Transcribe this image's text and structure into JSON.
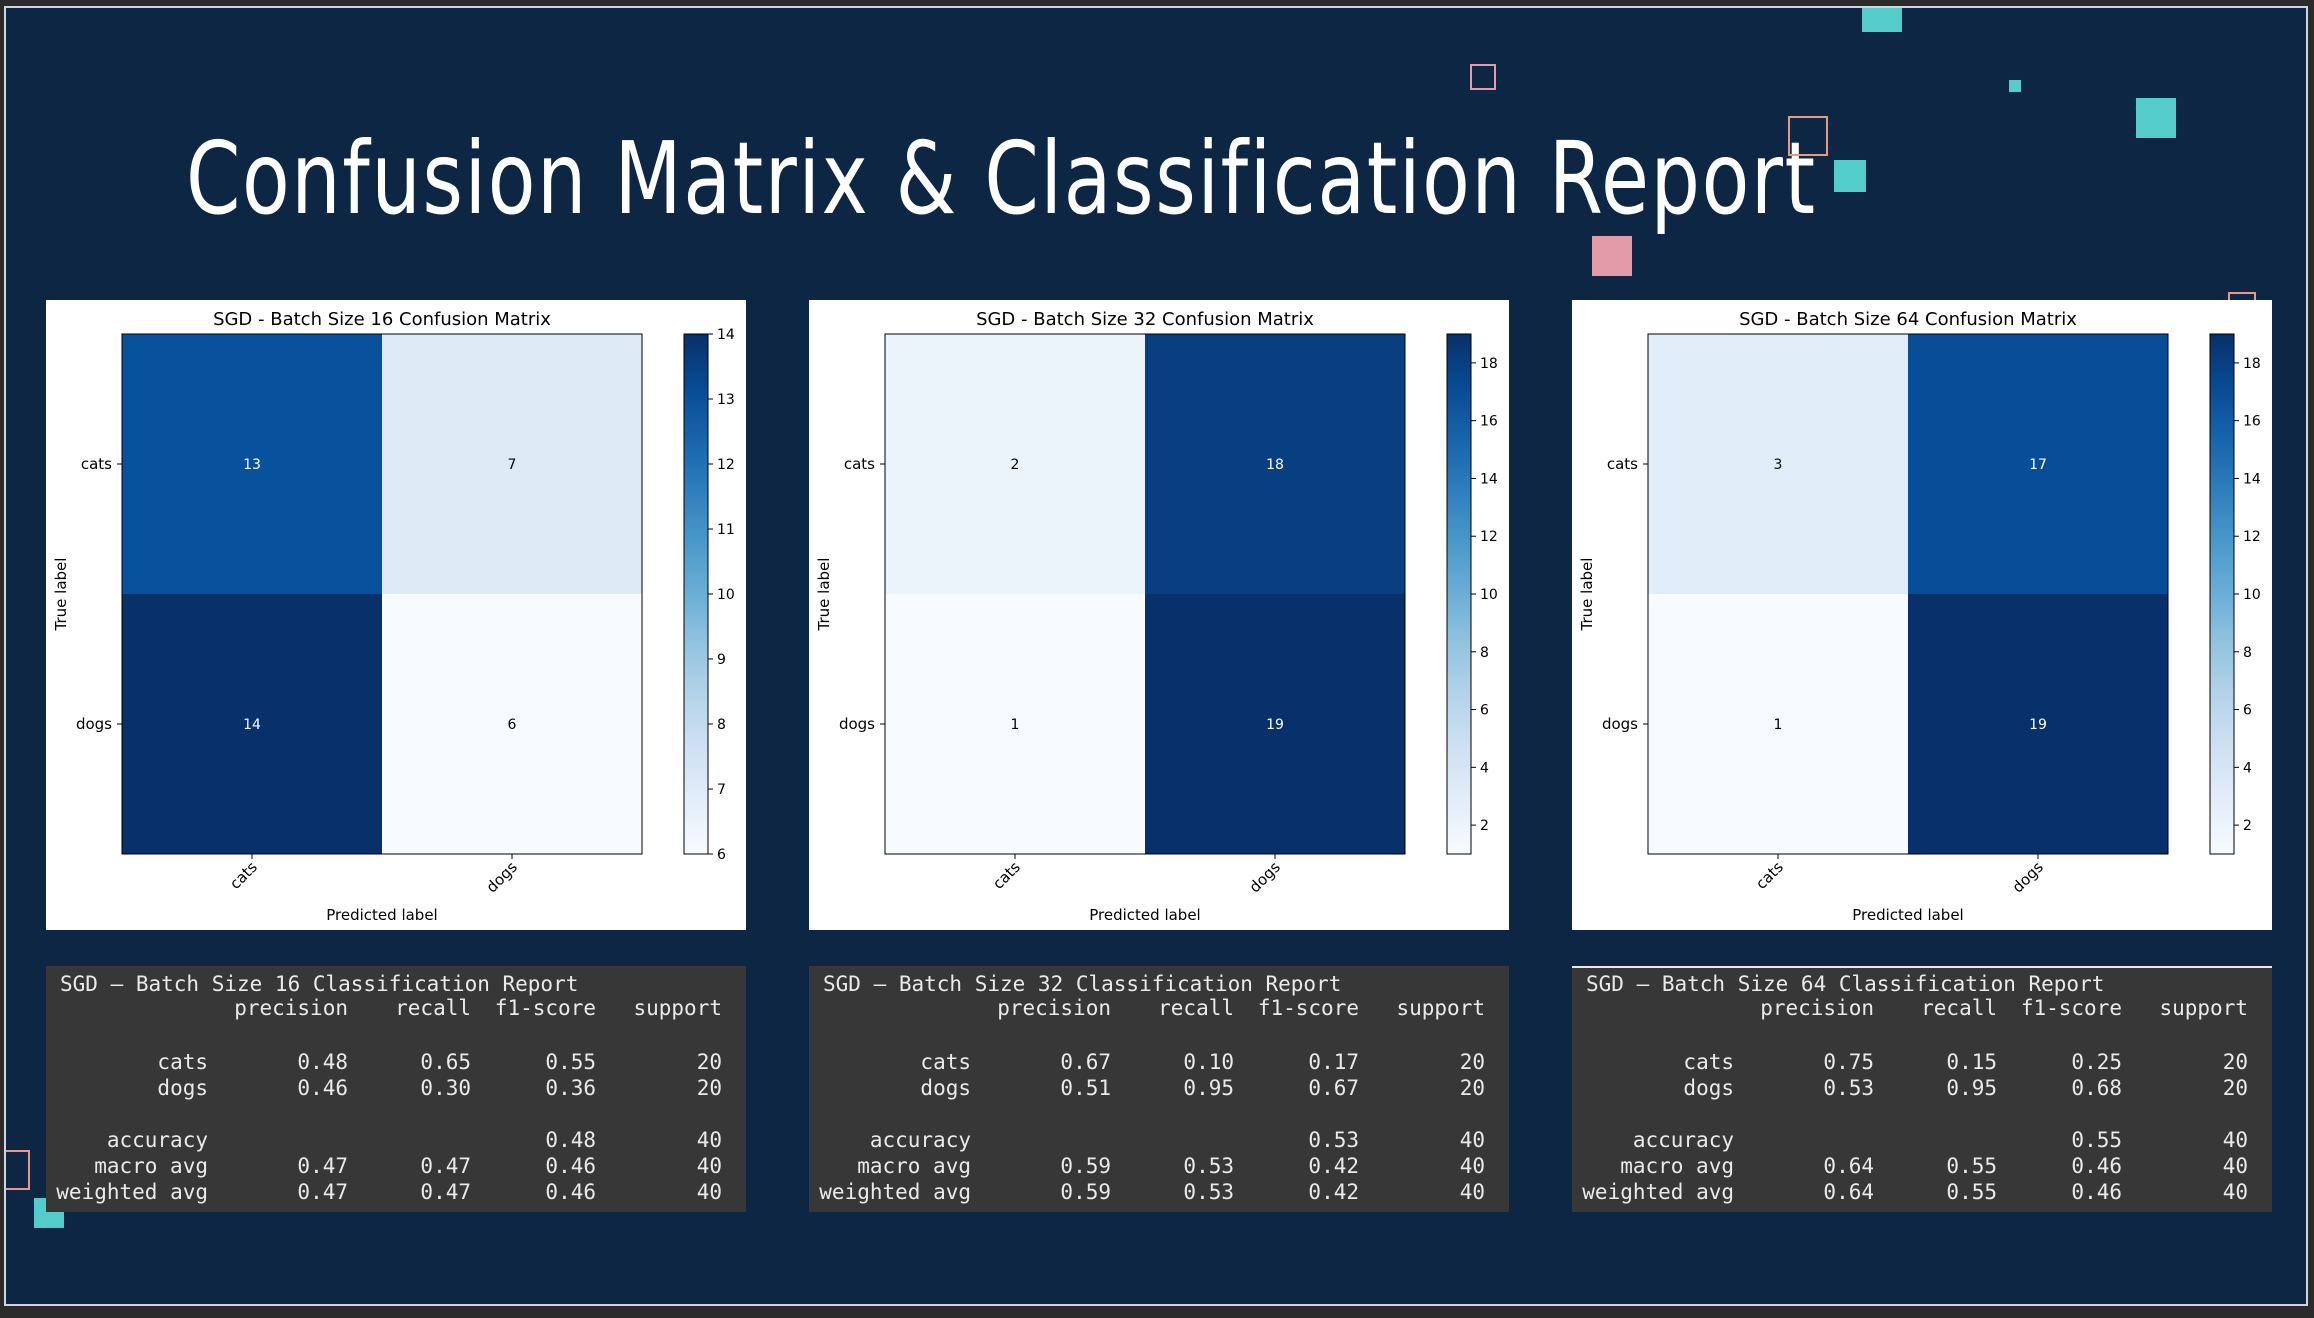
{
  "slide": {
    "title": "Confusion Matrix & Classification Report"
  },
  "colors": {
    "background": "#0d2644",
    "accent_teal": "#55cccc",
    "accent_pink": "#e39aa9",
    "accent_salmon": "#e59a85",
    "report_bg": "#373737",
    "cmap": "Blues"
  },
  "chart_data": [
    {
      "type": "heatmap",
      "title": "SGD - Batch Size 16 Confusion Matrix",
      "xlabel": "Predicted label",
      "ylabel": "True label",
      "x_categories": [
        "cats",
        "dogs"
      ],
      "y_categories": [
        "cats",
        "dogs"
      ],
      "values": [
        [
          13,
          7
        ],
        [
          14,
          6
        ]
      ],
      "colorbar": {
        "min": 6,
        "max": 14,
        "ticks": [
          6,
          7,
          8,
          9,
          10,
          11,
          12,
          13,
          14
        ]
      }
    },
    {
      "type": "heatmap",
      "title": "SGD - Batch Size 32 Confusion Matrix",
      "xlabel": "Predicted label",
      "ylabel": "True label",
      "x_categories": [
        "cats",
        "dogs"
      ],
      "y_categories": [
        "cats",
        "dogs"
      ],
      "values": [
        [
          2,
          18
        ],
        [
          1,
          19
        ]
      ],
      "colorbar": {
        "min": 1,
        "max": 19,
        "ticks": [
          2,
          4,
          6,
          8,
          10,
          12,
          14,
          16,
          18
        ]
      }
    },
    {
      "type": "heatmap",
      "title": "SGD - Batch Size 64 Confusion Matrix",
      "xlabel": "Predicted label",
      "ylabel": "True label",
      "x_categories": [
        "cats",
        "dogs"
      ],
      "y_categories": [
        "cats",
        "dogs"
      ],
      "values": [
        [
          3,
          17
        ],
        [
          1,
          19
        ]
      ],
      "colorbar": {
        "min": 1,
        "max": 19,
        "ticks": [
          2,
          4,
          6,
          8,
          10,
          12,
          14,
          16,
          18
        ]
      }
    }
  ],
  "reports": [
    {
      "title": "SGD – Batch Size 16 Classification Report",
      "headers": [
        "precision",
        "recall",
        "f1-score",
        "support"
      ],
      "rows": [
        {
          "label": "cats",
          "values": [
            "0.48",
            "0.65",
            "0.55",
            "20"
          ]
        },
        {
          "label": "dogs",
          "values": [
            "0.46",
            "0.30",
            "0.36",
            "20"
          ]
        },
        {
          "label": "accuracy",
          "values": [
            "",
            "",
            "0.48",
            "40"
          ]
        },
        {
          "label": "macro avg",
          "values": [
            "0.47",
            "0.47",
            "0.46",
            "40"
          ]
        },
        {
          "label": "weighted avg",
          "values": [
            "0.47",
            "0.47",
            "0.46",
            "40"
          ]
        }
      ]
    },
    {
      "title": "SGD – Batch Size 32 Classification Report",
      "headers": [
        "precision",
        "recall",
        "f1-score",
        "support"
      ],
      "rows": [
        {
          "label": "cats",
          "values": [
            "0.67",
            "0.10",
            "0.17",
            "20"
          ]
        },
        {
          "label": "dogs",
          "values": [
            "0.51",
            "0.95",
            "0.67",
            "20"
          ]
        },
        {
          "label": "accuracy",
          "values": [
            "",
            "",
            "0.53",
            "40"
          ]
        },
        {
          "label": "macro avg",
          "values": [
            "0.59",
            "0.53",
            "0.42",
            "40"
          ]
        },
        {
          "label": "weighted avg",
          "values": [
            "0.59",
            "0.53",
            "0.42",
            "40"
          ]
        }
      ]
    },
    {
      "title": "SGD – Batch Size 64 Classification Report",
      "headers": [
        "precision",
        "recall",
        "f1-score",
        "support"
      ],
      "rows": [
        {
          "label": "cats",
          "values": [
            "0.75",
            "0.15",
            "0.25",
            "20"
          ]
        },
        {
          "label": "dogs",
          "values": [
            "0.53",
            "0.95",
            "0.68",
            "20"
          ]
        },
        {
          "label": "accuracy",
          "values": [
            "",
            "",
            "0.55",
            "40"
          ]
        },
        {
          "label": "macro avg",
          "values": [
            "0.64",
            "0.55",
            "0.46",
            "40"
          ]
        },
        {
          "label": "weighted avg",
          "values": [
            "0.64",
            "0.55",
            "0.46",
            "40"
          ]
        }
      ]
    }
  ]
}
